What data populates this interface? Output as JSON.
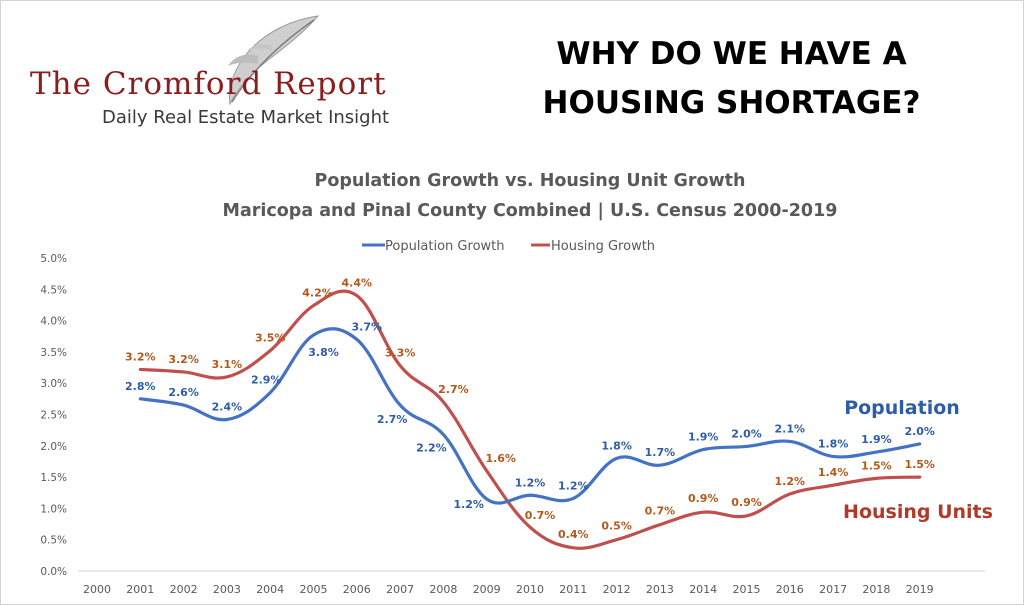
{
  "brand": {
    "name": "The Cromford Report",
    "tagline": "Daily Real Estate Market Insight"
  },
  "headline": {
    "line1": "WHY DO WE HAVE A",
    "line2": "HOUSING SHORTAGE?"
  },
  "colors": {
    "population": "#4472C4",
    "housing": "#C0504D",
    "population_label": "#2E5DA8",
    "housing_label": "#AE3A2A",
    "housing_data_label": "#B4581B",
    "axis_text": "#595959"
  },
  "chart_data": {
    "type": "line",
    "title": "Population Growth vs. Housing Unit Growth",
    "subtitle": "Maricopa and Pinal County Combined | U.S. Census 2000-2019",
    "x_categories": [
      "2000",
      "2001",
      "2002",
      "2003",
      "2004",
      "2005",
      "2006",
      "2007",
      "2008",
      "2009",
      "2010",
      "2011",
      "2012",
      "2013",
      "2014",
      "2015",
      "2016",
      "2017",
      "2018",
      "2019"
    ],
    "ylim": [
      0,
      5
    ],
    "y_ticks": [
      "0.0%",
      "0.5%",
      "1.0%",
      "1.5%",
      "2.0%",
      "2.5%",
      "3.0%",
      "3.5%",
      "4.0%",
      "4.5%",
      "5.0%"
    ],
    "grid": false,
    "legend_position": "top",
    "series": [
      {
        "name": "Population Growth",
        "values": [
          null,
          2.75,
          2.65,
          2.42,
          2.85,
          3.77,
          3.7,
          2.65,
          2.18,
          1.15,
          1.21,
          1.16,
          1.8,
          1.69,
          1.94,
          1.99,
          2.07,
          1.83,
          1.9,
          2.03
        ],
        "labels": [
          "",
          "2.8%",
          "2.6%",
          "2.4%",
          "2.9%",
          "3.8%",
          "3.7%",
          "2.7%",
          "2.2%",
          "1.2%",
          "1.2%",
          "1.2%",
          "1.8%",
          "1.7%",
          "1.9%",
          "2.0%",
          "2.1%",
          "1.8%",
          "1.9%",
          "2.0%"
        ]
      },
      {
        "name": "Housing Growth",
        "values": [
          null,
          3.22,
          3.18,
          3.1,
          3.52,
          4.24,
          4.4,
          3.28,
          2.7,
          1.6,
          0.7,
          0.37,
          0.5,
          0.74,
          0.94,
          0.88,
          1.23,
          1.37,
          1.48,
          1.5
        ],
        "labels": [
          "",
          "3.2%",
          "3.2%",
          "3.1%",
          "3.5%",
          "4.2%",
          "4.4%",
          "3.3%",
          "2.7%",
          "1.6%",
          "0.7%",
          "0.4%",
          "0.5%",
          "0.7%",
          "0.9%",
          "0.9%",
          "1.2%",
          "1.4%",
          "1.5%",
          "1.5%"
        ]
      }
    ],
    "annotations": {
      "population": "Population",
      "housing": "Housing Units"
    }
  }
}
